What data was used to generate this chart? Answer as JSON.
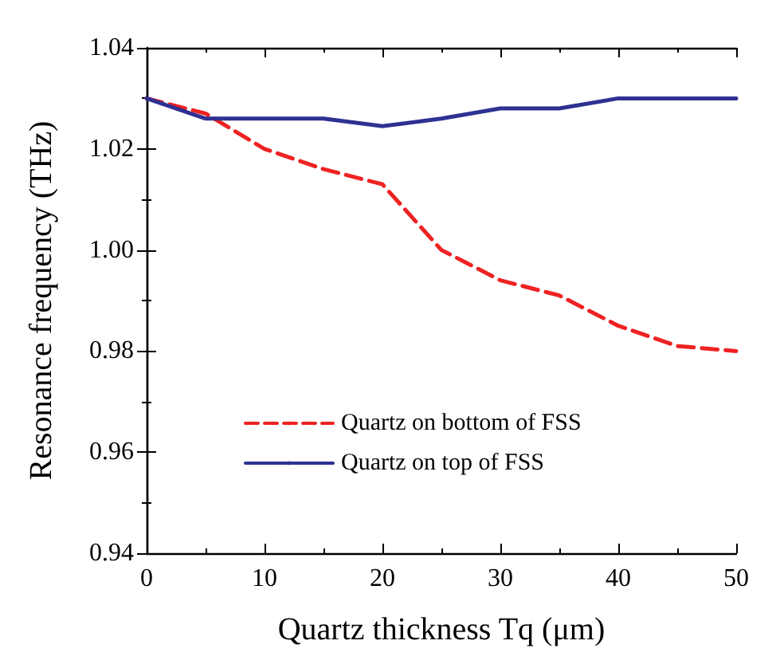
{
  "chart_data": {
    "type": "line",
    "xlabel": "Quartz thickness Tq (μm)",
    "ylabel": "Resonance frequency (THz)",
    "x": [
      0,
      5,
      10,
      15,
      20,
      25,
      30,
      35,
      40,
      45,
      50
    ],
    "series": [
      {
        "name": "Quartz on bottom of FSS",
        "color": "#ee2222",
        "line_style": "dashed",
        "values": [
          1.03,
          1.027,
          1.02,
          1.016,
          1.013,
          1.0,
          0.994,
          0.991,
          0.985,
          0.981,
          0.98
        ]
      },
      {
        "name": "Quartz on top of FSS",
        "color": "#2e3192",
        "line_style": "solid",
        "values": [
          1.03,
          1.026,
          1.026,
          1.026,
          1.0245,
          1.026,
          1.028,
          1.028,
          1.03,
          1.03,
          1.03
        ]
      }
    ],
    "xlim": [
      0,
      50
    ],
    "xticks": [
      0,
      10,
      20,
      30,
      40,
      50
    ],
    "ylim": [
      0.94,
      1.04
    ],
    "yticks": [
      0.94,
      0.96,
      0.98,
      {
        "value": 1,
        "label": "1.00"
      },
      1.02,
      1.04
    ],
    "grid": false,
    "legend": "bottom",
    "marker": "none"
  }
}
